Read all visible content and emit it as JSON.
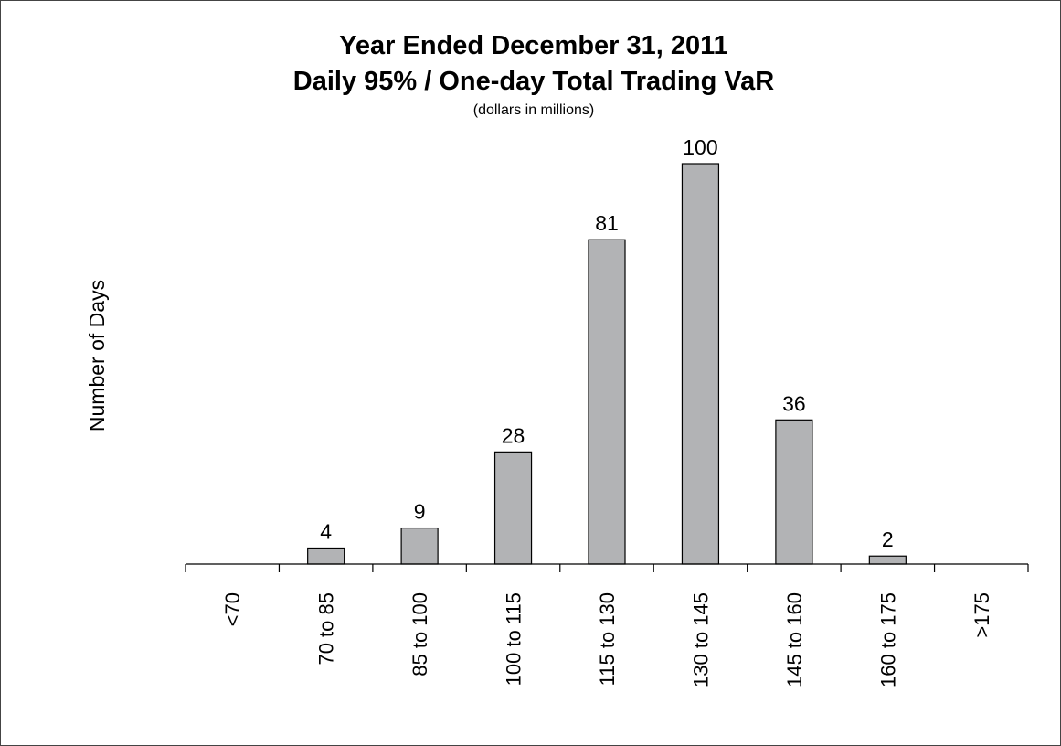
{
  "chart_data": {
    "type": "bar",
    "title": "Year Ended December 31, 2011",
    "title_line2": "Daily 95% / One-day Total Trading VaR",
    "subtitle": "(dollars in millions)",
    "xlabel": "",
    "ylabel": "Number of Days",
    "categories": [
      "<70",
      "70 to 85",
      "85 to 100",
      "100 to 115",
      "115 to 130",
      "130 to 145",
      "145 to 160",
      "160 to 175",
      ">175"
    ],
    "values": [
      0,
      4,
      9,
      28,
      81,
      100,
      36,
      2,
      0
    ],
    "data_labels": [
      "",
      "4",
      "9",
      "28",
      "81",
      "100",
      "36",
      "2",
      ""
    ],
    "ylim": [
      0,
      100
    ],
    "grid": false,
    "legend": "none",
    "bar_color": "#b2b3b5"
  }
}
